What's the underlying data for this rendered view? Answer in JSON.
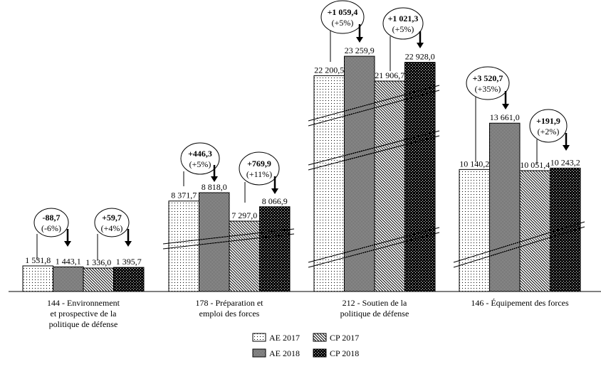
{
  "chart_data": {
    "type": "bar",
    "title": "",
    "xlabel": "",
    "ylabel": "",
    "axis_break": true,
    "categories": [
      [
        "144 - Environnement",
        "et prospective de la",
        "politique de défense"
      ],
      [
        "178 - Préparation et",
        "emploi des forces"
      ],
      [
        "212 - Soutien de la",
        "politique de défense"
      ],
      [
        "146 - Équipement des forces"
      ]
    ],
    "series": [
      {
        "name": "AE 2017",
        "pattern": "dots-light",
        "values": [
          1531.8,
          8371.7,
          22200.5,
          10140.2
        ],
        "labels": [
          "1 531,8",
          "8 371,7",
          "22 200,5",
          "10 140,2"
        ]
      },
      {
        "name": "AE 2018",
        "pattern": "crosshatch",
        "values": [
          1443.1,
          8818.0,
          23259.9,
          13661.0
        ],
        "labels": [
          "1 443,1",
          "8 818,0",
          "23 259,9",
          "13 661,0"
        ]
      },
      {
        "name": "CP 2017",
        "pattern": "diagonal",
        "values": [
          1336.0,
          7297.0,
          21906.7,
          10051.4
        ],
        "labels": [
          "1 336,0",
          "7 297,0",
          "21 906,7",
          "10 051,4"
        ]
      },
      {
        "name": "CP 2018",
        "pattern": "dots-dark",
        "values": [
          1395.7,
          8066.9,
          22928.0,
          10243.2
        ],
        "labels": [
          "1 395,7",
          "8 066,9",
          "22 928,0",
          "10 243,2"
        ]
      }
    ],
    "annotations": [
      {
        "category": 0,
        "type": "AE",
        "delta": "-88,7",
        "pct": "(-6%)"
      },
      {
        "category": 0,
        "type": "CP",
        "delta": "+59,7",
        "pct": "(+4%)"
      },
      {
        "category": 1,
        "type": "AE",
        "delta": "+446,3",
        "pct": "(+5%)"
      },
      {
        "category": 1,
        "type": "CP",
        "delta": "+769,9",
        "pct": "(+11%)"
      },
      {
        "category": 2,
        "type": "AE",
        "delta": "+1 059,4",
        "pct": "(+5%)"
      },
      {
        "category": 2,
        "type": "CP",
        "delta": "+1 021,3",
        "pct": "(+5%)"
      },
      {
        "category": 3,
        "type": "AE",
        "delta": "+3 520,7",
        "pct": "(+35%)"
      },
      {
        "category": 3,
        "type": "CP",
        "delta": "+191,9",
        "pct": "(+2%)"
      }
    ],
    "legend": {
      "position": "bottom",
      "entries": [
        "AE 2017",
        "CP 2017",
        "AE 2018",
        "CP 2018"
      ]
    },
    "colors": {
      "ink": "#000000",
      "background": "#ffffff"
    }
  }
}
